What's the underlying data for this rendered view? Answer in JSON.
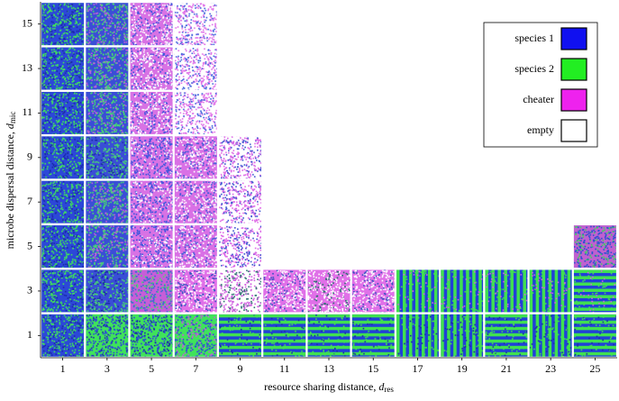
{
  "chart_data": {
    "type": "grid",
    "xlabel": {
      "text": "resource sharing distance,",
      "symbol": "d",
      "subscript": "res"
    },
    "ylabel": {
      "text": "microbe dispersal distance,",
      "symbol": "d",
      "subscript": "mic"
    },
    "xlim": [
      0,
      26
    ],
    "ylim": [
      0,
      16
    ],
    "xticks": [
      1,
      3,
      5,
      7,
      9,
      11,
      13,
      15,
      17,
      19,
      21,
      23,
      25
    ],
    "yticks": [
      1,
      3,
      5,
      7,
      9,
      11,
      13,
      15
    ],
    "legend": {
      "position": "upper right",
      "items": [
        {
          "name": "species 1",
          "color": "#1010f0"
        },
        {
          "name": "species 2",
          "color": "#22ee22"
        },
        {
          "name": "cheater",
          "color": "#ee22ee"
        },
        {
          "name": "empty",
          "color": "#ffffff"
        }
      ]
    },
    "cells": [
      {
        "x": 1,
        "y": 15,
        "colors": [
          "#2c48d8",
          "#3fe35a",
          "#1a2aa8"
        ]
      },
      {
        "x": 3,
        "y": 15,
        "colors": [
          "#3a4ed6",
          "#48d870",
          "#c060d8"
        ]
      },
      {
        "x": 5,
        "y": 15,
        "colors": [
          "#d872e4",
          "#ffffff",
          "#3a55dd"
        ]
      },
      {
        "x": 7,
        "y": 15,
        "colors": [
          "#ffffff",
          "#e070e8",
          "#4060dd"
        ]
      },
      {
        "x": 1,
        "y": 13,
        "colors": [
          "#2c48d8",
          "#3fe35a",
          "#1a2aa8"
        ]
      },
      {
        "x": 3,
        "y": 13,
        "colors": [
          "#3a4ed6",
          "#48d870",
          "#c060d8"
        ]
      },
      {
        "x": 5,
        "y": 13,
        "colors": [
          "#d872e4",
          "#ffffff",
          "#3a55dd"
        ]
      },
      {
        "x": 7,
        "y": 13,
        "colors": [
          "#ffffff",
          "#e070e8",
          "#4060dd"
        ]
      },
      {
        "x": 1,
        "y": 11,
        "colors": [
          "#2c48d8",
          "#3fe35a",
          "#1a2aa8"
        ]
      },
      {
        "x": 3,
        "y": 11,
        "colors": [
          "#3a4ed6",
          "#48d870",
          "#c060d8"
        ]
      },
      {
        "x": 5,
        "y": 11,
        "colors": [
          "#d872e4",
          "#ffffff",
          "#3a55dd"
        ]
      },
      {
        "x": 7,
        "y": 11,
        "colors": [
          "#ffffff",
          "#e070e8",
          "#4060dd"
        ]
      },
      {
        "x": 1,
        "y": 9,
        "colors": [
          "#2c48d8",
          "#3fe35a",
          "#1a2aa8"
        ]
      },
      {
        "x": 3,
        "y": 9,
        "colors": [
          "#3a4ed6",
          "#48d870",
          "#1a2aa8"
        ]
      },
      {
        "x": 5,
        "y": 9,
        "colors": [
          "#d872e4",
          "#3a55dd",
          "#ffffff"
        ]
      },
      {
        "x": 7,
        "y": 9,
        "colors": [
          "#d970e5",
          "#ffffff",
          "#3c58d8"
        ]
      },
      {
        "x": 9,
        "y": 9,
        "colors": [
          "#ffffff",
          "#dd66e6",
          "#3a50d0"
        ]
      },
      {
        "x": 1,
        "y": 7,
        "colors": [
          "#2c48d8",
          "#3fe35a",
          "#1a2aa8"
        ]
      },
      {
        "x": 3,
        "y": 7,
        "colors": [
          "#3a4ed6",
          "#48d870",
          "#c060d8"
        ]
      },
      {
        "x": 5,
        "y": 7,
        "colors": [
          "#d872e4",
          "#3a55dd",
          "#ffffff"
        ]
      },
      {
        "x": 7,
        "y": 7,
        "colors": [
          "#d970e5",
          "#ffffff",
          "#3c58d8"
        ]
      },
      {
        "x": 9,
        "y": 7,
        "colors": [
          "#ffffff",
          "#dd66e6",
          "#3a50d0"
        ]
      },
      {
        "x": 1,
        "y": 5,
        "colors": [
          "#2c48d8",
          "#3fe35a",
          "#1a2aa8"
        ]
      },
      {
        "x": 3,
        "y": 5,
        "colors": [
          "#3a4ed6",
          "#48d870",
          "#c060d8"
        ]
      },
      {
        "x": 5,
        "y": 5,
        "colors": [
          "#d872e4",
          "#3a55dd",
          "#ffffff"
        ]
      },
      {
        "x": 7,
        "y": 5,
        "colors": [
          "#d970e5",
          "#ffffff",
          "#3c58d8"
        ]
      },
      {
        "x": 9,
        "y": 5,
        "colors": [
          "#ffffff",
          "#dd66e6",
          "#3a50d0"
        ]
      },
      {
        "x": 25,
        "y": 5,
        "colors": [
          "#c060d0",
          "#2850d0",
          "#40d060"
        ]
      },
      {
        "x": 1,
        "y": 3,
        "colors": [
          "#2c48d8",
          "#3fe35a",
          "#1a2aa8"
        ]
      },
      {
        "x": 3,
        "y": 3,
        "colors": [
          "#3a4ed6",
          "#48d870",
          "#1a2aa8"
        ]
      },
      {
        "x": 5,
        "y": 3,
        "colors": [
          "#c65ed8",
          "#3a6cd0",
          "#4fd86a"
        ]
      },
      {
        "x": 7,
        "y": 3,
        "colors": [
          "#e070e8",
          "#ffffff",
          "#3050c0"
        ]
      },
      {
        "x": 9,
        "y": 3,
        "colors": [
          "#ffffff",
          "#d060e0",
          "#2a7070"
        ]
      },
      {
        "x": 11,
        "y": 3,
        "colors": [
          "#e070e8",
          "#ffffff",
          "#3050c0"
        ]
      },
      {
        "x": 13,
        "y": 3,
        "colors": [
          "#e070e8",
          "#ffffff",
          "#2a7070"
        ]
      },
      {
        "x": 15,
        "y": 3,
        "colors": [
          "#e070e8",
          "#ffffff",
          "#3050c0"
        ]
      },
      {
        "x": 17,
        "y": 3,
        "colors": [
          "#2040d8",
          "#40e050",
          "#d060e0"
        ],
        "stripes": "vertical"
      },
      {
        "x": 19,
        "y": 3,
        "colors": [
          "#2040d8",
          "#40e050",
          "#d060e0"
        ],
        "stripes": "vertical"
      },
      {
        "x": 21,
        "y": 3,
        "colors": [
          "#2040d8",
          "#40e050",
          "#d060e0"
        ],
        "stripes": "vertical"
      },
      {
        "x": 23,
        "y": 3,
        "colors": [
          "#2040d8",
          "#40e050",
          "#d060e0"
        ],
        "stripes": "vertical"
      },
      {
        "x": 25,
        "y": 3,
        "colors": [
          "#2040d8",
          "#40e050",
          "#d060e0"
        ],
        "stripes": "horizontal"
      },
      {
        "x": 1,
        "y": 1,
        "colors": [
          "#2c48d8",
          "#3fe35a",
          "#1a2aa8"
        ]
      },
      {
        "x": 3,
        "y": 1,
        "colors": [
          "#3fe35a",
          "#2c48d8",
          "#1a2aa8"
        ]
      },
      {
        "x": 5,
        "y": 1,
        "colors": [
          "#3fe35a",
          "#2c48d8",
          "#1a2aa8"
        ]
      },
      {
        "x": 7,
        "y": 1,
        "colors": [
          "#3fe35a",
          "#2c48d8",
          "#c060d8"
        ]
      },
      {
        "x": 9,
        "y": 1,
        "colors": [
          "#2040d8",
          "#40e050",
          "#1a2aa8"
        ],
        "stripes": "horizontal"
      },
      {
        "x": 11,
        "y": 1,
        "colors": [
          "#2040d8",
          "#40e050",
          "#1a2aa8"
        ],
        "stripes": "horizontal"
      },
      {
        "x": 13,
        "y": 1,
        "colors": [
          "#2040d8",
          "#40e050",
          "#1a2aa8"
        ],
        "stripes": "horizontal"
      },
      {
        "x": 15,
        "y": 1,
        "colors": [
          "#2040d8",
          "#40e050",
          "#1a2aa8"
        ],
        "stripes": "horizontal"
      },
      {
        "x": 17,
        "y": 1,
        "colors": [
          "#2040d8",
          "#40e050",
          "#1a2aa8"
        ],
        "stripes": "vertical"
      },
      {
        "x": 19,
        "y": 1,
        "colors": [
          "#2040d8",
          "#40e050",
          "#1a2aa8"
        ],
        "stripes": "vertical"
      },
      {
        "x": 21,
        "y": 1,
        "colors": [
          "#2040d8",
          "#40e050",
          "#1a2aa8"
        ],
        "stripes": "horizontal"
      },
      {
        "x": 23,
        "y": 1,
        "colors": [
          "#2040d8",
          "#40e050",
          "#1a2aa8"
        ],
        "stripes": "vertical"
      },
      {
        "x": 25,
        "y": 1,
        "colors": [
          "#2040d8",
          "#40e050",
          "#1a2aa8"
        ],
        "stripes": "horizontal"
      }
    ]
  }
}
